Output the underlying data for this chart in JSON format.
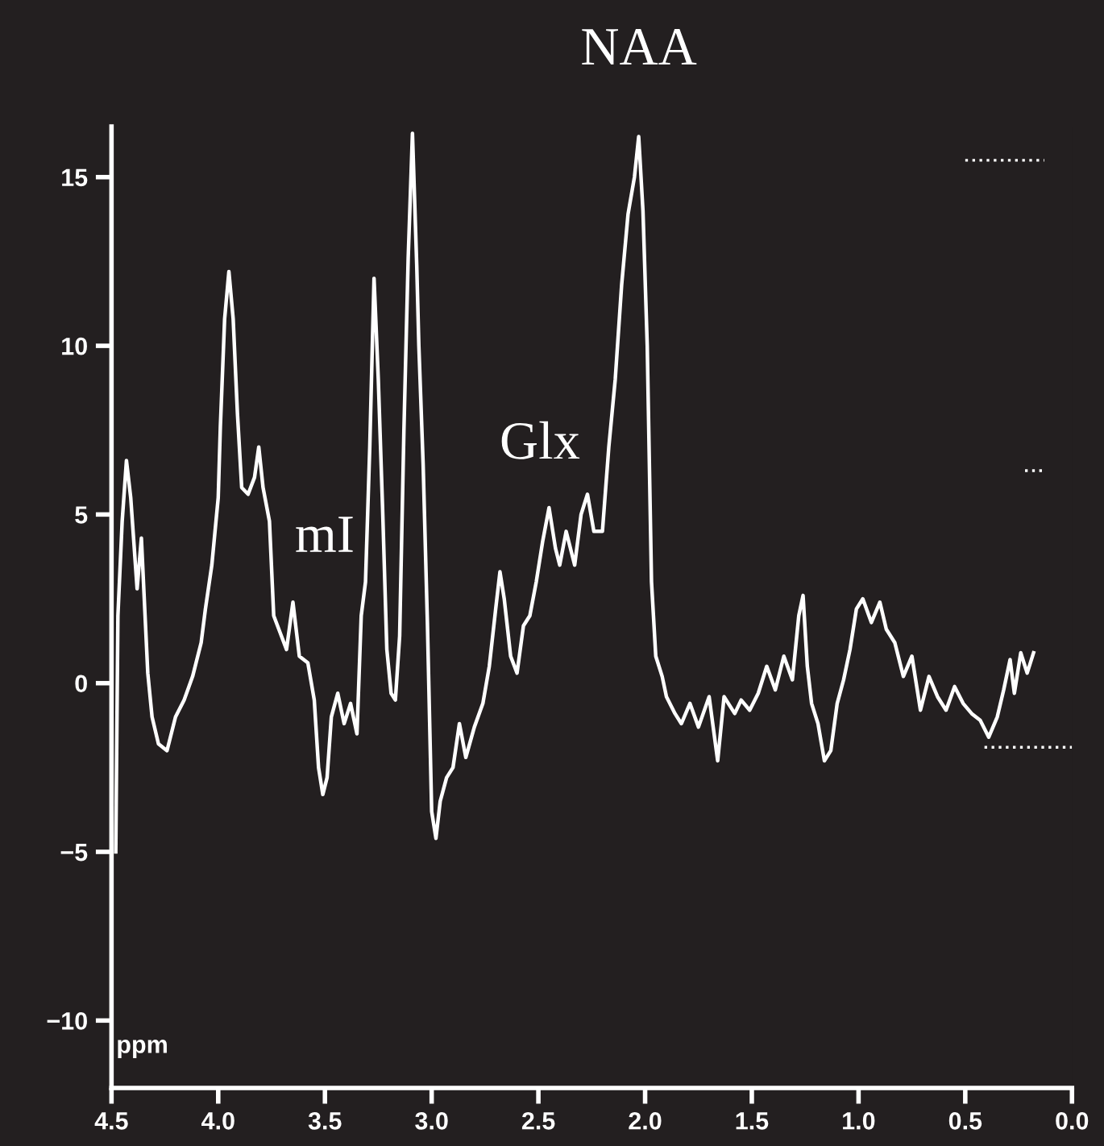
{
  "chart_data": {
    "type": "line",
    "xlabel": "ppm",
    "xlim": [
      4.5,
      0.0
    ],
    "xticks": [
      {
        "value": 4.5,
        "label": "4.5"
      },
      {
        "value": 4.0,
        "label": "4.0"
      },
      {
        "value": 3.5,
        "label": "3.5"
      },
      {
        "value": 3.0,
        "label": "3.0"
      },
      {
        "value": 2.5,
        "label": "2.5"
      },
      {
        "value": 2.0,
        "label": "2.0"
      },
      {
        "value": 1.5,
        "label": "1.5"
      },
      {
        "value": 1.0,
        "label": "1.0"
      },
      {
        "value": 0.5,
        "label": "0.5"
      },
      {
        "value": 0.0,
        "label": "0.0"
      }
    ],
    "ylim": [
      -12,
      16.5
    ],
    "yticks": [
      {
        "value": -10,
        "label": "−10"
      },
      {
        "value": -5,
        "label": "−5"
      },
      0,
      5,
      10,
      15
    ],
    "grid": false,
    "legend": false,
    "marker": "none",
    "annotations": [
      {
        "text": "NAA",
        "x": 2.03,
        "y": 16.2
      },
      "mI",
      "Glx"
    ],
    "series": [
      {
        "color": "#ffffff",
        "line_style": "solid",
        "x": [
          4.48,
          4.47,
          4.45,
          4.43,
          4.41,
          4.38,
          4.36,
          4.33,
          4.31,
          4.28,
          4.24,
          4.2,
          4.16,
          4.12,
          4.08,
          4.06,
          4.03,
          4.0,
          3.99,
          3.97,
          3.95,
          3.93,
          3.91,
          3.89,
          3.86,
          3.83,
          3.81,
          3.79,
          3.76,
          3.74,
          3.71,
          3.68,
          3.65,
          3.62,
          3.58,
          3.55,
          3.53,
          3.51,
          3.49,
          3.47,
          3.44,
          3.41,
          3.38,
          3.35,
          3.33,
          3.31,
          3.29,
          3.27,
          3.25,
          3.23,
          3.21,
          3.19,
          3.17,
          3.15,
          3.13,
          3.11,
          3.09,
          3.07,
          3.06,
          3.04,
          3.02,
          3.0,
          2.98,
          2.96,
          2.93,
          2.9,
          2.87,
          2.84,
          2.8,
          2.76,
          2.73,
          2.7,
          2.68,
          2.66,
          2.63,
          2.6,
          2.57,
          2.54,
          2.51,
          2.48,
          2.45,
          2.42,
          2.4,
          2.37,
          2.33,
          2.3,
          2.27,
          2.24,
          2.2,
          2.17,
          2.14,
          2.11,
          2.08,
          2.05,
          2.03,
          2.01,
          1.99,
          1.97,
          1.95,
          1.92,
          1.9,
          1.86,
          1.83,
          1.79,
          1.75,
          1.7,
          1.66,
          1.63,
          1.58,
          1.55,
          1.51,
          1.47,
          1.43,
          1.39,
          1.35,
          1.31,
          1.28,
          1.26,
          1.24,
          1.22,
          1.19,
          1.16,
          1.13,
          1.1,
          1.07,
          1.04,
          1.01,
          0.98,
          0.94,
          0.9,
          0.87,
          0.83,
          0.79,
          0.75,
          0.71,
          0.67,
          0.63,
          0.59,
          0.55,
          0.51,
          0.47,
          0.43,
          0.39,
          0.35,
          0.32,
          0.29,
          0.27,
          0.24,
          0.21,
          0.18
        ],
        "values": [
          -5,
          2,
          4.8,
          6.6,
          5.5,
          2.8,
          4.3,
          0.3,
          -1.0,
          -1.8,
          -2.0,
          -1.0,
          -0.5,
          0.2,
          1.2,
          2.2,
          3.5,
          5.5,
          7.6,
          10.8,
          12.2,
          10.8,
          8.0,
          5.8,
          5.6,
          6.1,
          7.0,
          5.8,
          4.8,
          2.0,
          1.5,
          1.0,
          2.4,
          0.8,
          0.6,
          -0.5,
          -2.5,
          -3.3,
          -2.8,
          -1.0,
          -0.3,
          -1.2,
          -0.6,
          -1.5,
          2.0,
          3.0,
          7.0,
          12.0,
          9.0,
          5.2,
          1.0,
          -0.3,
          -0.5,
          1.4,
          7.5,
          12.6,
          16.3,
          12.4,
          10.0,
          6.5,
          1.8,
          -3.8,
          -4.6,
          -3.5,
          -2.8,
          -2.5,
          -1.2,
          -2.2,
          -1.3,
          -0.6,
          0.5,
          2.2,
          3.3,
          2.5,
          0.8,
          0.3,
          1.7,
          2.0,
          3.0,
          4.2,
          5.2,
          4.0,
          3.5,
          4.5,
          3.5,
          5.0,
          5.6,
          4.5,
          4.5,
          7.0,
          9.0,
          11.8,
          13.9,
          15.0,
          16.2,
          14.0,
          10.0,
          3.0,
          0.8,
          0.2,
          -0.4,
          -0.9,
          -1.2,
          -0.6,
          -1.3,
          -0.4,
          -2.3,
          -0.4,
          -0.9,
          -0.5,
          -0.8,
          -0.3,
          0.5,
          -0.2,
          0.8,
          0.1,
          2.0,
          2.6,
          0.5,
          -0.6,
          -1.2,
          -2.3,
          -2.0,
          -0.6,
          0.1,
          1.0,
          2.2,
          2.5,
          1.8,
          2.4,
          1.6,
          1.2,
          0.2,
          0.8,
          -0.8,
          0.2,
          -0.4,
          -0.8,
          -0.1,
          -0.6,
          -0.9,
          -1.1,
          -1.6,
          -1.0,
          -0.2,
          0.7,
          -0.3,
          0.9,
          0.3,
          0.9
        ]
      },
      {
        "color": "#ffffff",
        "line_style": "dotted",
        "x": [
          0.5,
          0.13
        ],
        "values": [
          15.5,
          15.5
        ]
      },
      {
        "color": "#ffffff",
        "line_style": "dotted",
        "x": [
          0.22,
          0.13
        ],
        "values": [
          6.3,
          6.3
        ]
      },
      {
        "color": "#ffffff",
        "line_style": "dotted",
        "x": [
          0.41,
          0.0
        ],
        "values": [
          -1.9,
          -1.9
        ]
      }
    ]
  }
}
